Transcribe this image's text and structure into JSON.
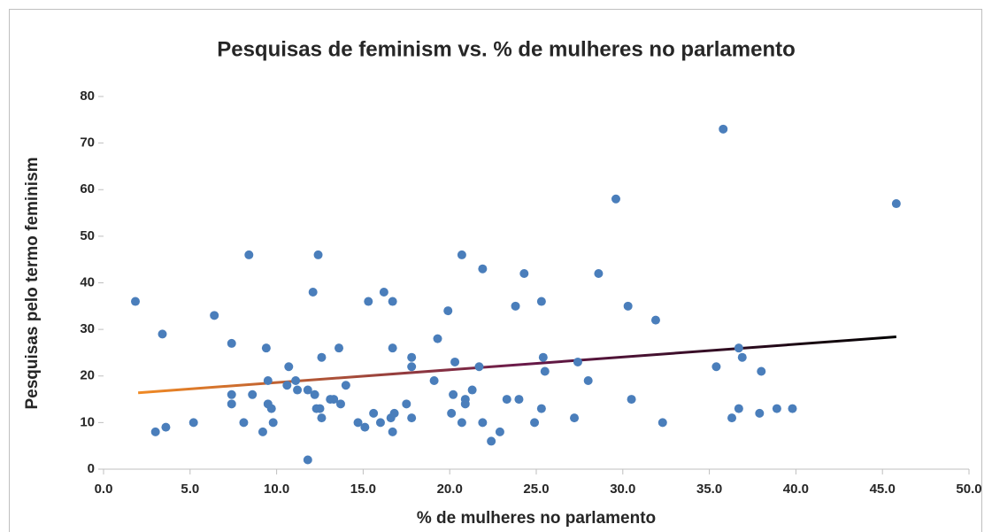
{
  "chart_data": {
    "type": "scatter",
    "title": "Pesquisas de feminism vs. % de mulheres no parlamento",
    "x_label": "% de mulheres no parlamento",
    "y_label": "Pesquisas pelo termo feminism",
    "color": "#4a7ebb",
    "xlim": [
      0,
      50
    ],
    "ylim": [
      0,
      80
    ],
    "xticks": [
      {
        "value": 0,
        "label": "0.0"
      },
      {
        "value": 5,
        "label": "5.0"
      },
      {
        "value": 10,
        "label": "10.0"
      },
      {
        "value": 15,
        "label": "15.0"
      },
      {
        "value": 20,
        "label": "20.0"
      },
      {
        "value": 25,
        "label": "25.0"
      },
      {
        "value": 30,
        "label": "30.0"
      },
      {
        "value": 35,
        "label": "35.0"
      },
      {
        "value": 40,
        "label": "40.0"
      },
      {
        "value": 45,
        "label": "45.0"
      },
      {
        "value": 50,
        "label": "50.0"
      }
    ],
    "yticks": [
      0,
      10,
      20,
      30,
      40,
      50,
      60,
      70,
      80
    ],
    "grid": false,
    "x": [
      1.84,
      3.0,
      3.4,
      3.6,
      5.2,
      6.4,
      7.4,
      7.4,
      7.4,
      8.1,
      8.4,
      8.6,
      9.2,
      9.4,
      9.5,
      9.5,
      9.7,
      9.8,
      10.6,
      10.7,
      11.1,
      11.2,
      11.8,
      11.8,
      12.1,
      12.2,
      12.3,
      12.4,
      12.5,
      12.6,
      12.6,
      13.1,
      13.3,
      13.6,
      13.7,
      14.0,
      14.7,
      15.1,
      15.3,
      15.6,
      16.0,
      16.2,
      16.6,
      16.7,
      16.7,
      16.7,
      16.8,
      17.5,
      17.8,
      17.8,
      17.8,
      19.1,
      19.3,
      19.9,
      20.1,
      20.2,
      20.3,
      20.7,
      20.7,
      20.9,
      20.9,
      21.3,
      21.7,
      21.9,
      21.9,
      22.4,
      22.9,
      23.3,
      23.8,
      24.0,
      24.3,
      24.9,
      25.3,
      25.3,
      25.4,
      25.5,
      27.2,
      27.4,
      28.0,
      28.6,
      29.6,
      30.3,
      30.5,
      31.9,
      32.3,
      35.4,
      35.8,
      36.3,
      36.7,
      36.7,
      36.9,
      37.9,
      38.0,
      38.9,
      39.8,
      45.8
    ],
    "values": [
      36,
      8,
      29,
      9,
      10,
      33,
      27,
      16,
      14,
      10,
      46,
      16,
      8,
      26,
      19,
      14,
      13,
      10,
      18,
      22,
      19,
      17,
      17,
      2,
      38,
      16,
      13,
      46,
      13,
      11,
      24,
      15,
      15,
      26,
      14,
      18,
      10,
      9,
      36,
      12,
      10,
      38,
      11,
      26,
      8,
      36,
      12,
      14,
      24,
      22,
      11,
      19,
      28,
      34,
      12,
      16,
      23,
      46,
      10,
      14,
      15,
      17,
      22,
      10,
      43,
      6,
      8,
      15,
      35,
      15,
      42,
      10,
      36,
      13,
      24,
      21,
      11,
      23,
      19,
      42,
      58,
      35,
      15,
      32,
      10,
      22,
      73,
      11,
      26,
      13,
      24,
      12,
      21,
      13,
      13,
      57
    ],
    "trendline": {
      "x": [
        2.0,
        45.8
      ],
      "y": [
        16.4,
        28.4
      ],
      "colors": [
        "#f08a24",
        "#6b1a4a",
        "#000000"
      ]
    }
  }
}
